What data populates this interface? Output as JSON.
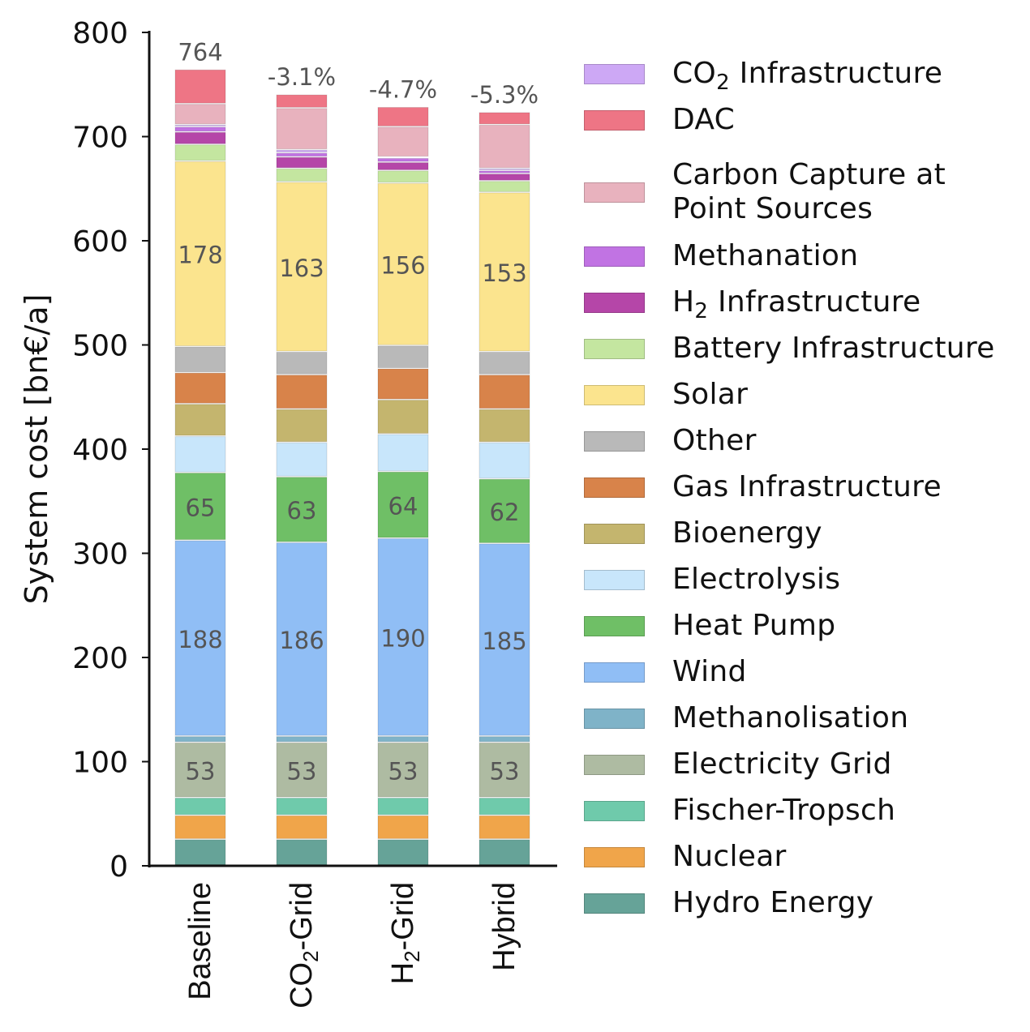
{
  "chart_data": {
    "type": "bar",
    "stacked": true,
    "title": "",
    "xlabel": "",
    "ylabel": "System cost [bn€/a]",
    "ylim": [
      0,
      800
    ],
    "yticks": [
      0,
      100,
      200,
      300,
      400,
      500,
      600,
      700,
      800
    ],
    "categories": [
      "Baseline",
      "CO2-Grid",
      "H2-Grid",
      "Hybrid"
    ],
    "category_display": [
      {
        "main": "Baseline",
        "sub": "",
        "rest": ""
      },
      {
        "main": "CO",
        "sub": "2",
        "rest": "-Grid"
      },
      {
        "main": "H",
        "sub": "2",
        "rest": "-Grid"
      },
      {
        "main": "Hybrid",
        "sub": "",
        "rest": ""
      }
    ],
    "top_labels": [
      "764",
      "-3.1%",
      "-4.7%",
      "-5.3%"
    ],
    "grid": false,
    "legend_position": "right",
    "series": [
      {
        "name": "Hydro Energy",
        "color": "#66a398",
        "values": [
          25,
          25,
          25,
          25
        ]
      },
      {
        "name": "Nuclear",
        "color": "#f0a54a",
        "values": [
          23,
          23,
          23,
          23
        ]
      },
      {
        "name": "Fischer-Tropsch",
        "color": "#6fcaab",
        "values": [
          17,
          17,
          17,
          17
        ]
      },
      {
        "name": "Electricity Grid",
        "color": "#aebba2",
        "values": [
          53,
          53,
          53,
          53
        ],
        "labels": [
          "53",
          "53",
          "53",
          "53"
        ]
      },
      {
        "name": "Methanolisation",
        "color": "#7fb3c8",
        "values": [
          6,
          6,
          6,
          6
        ]
      },
      {
        "name": "Wind",
        "color": "#90bef5",
        "values": [
          188,
          186,
          190,
          185
        ],
        "labels": [
          "188",
          "186",
          "190",
          "185"
        ]
      },
      {
        "name": "Heat Pump",
        "color": "#6fbf66",
        "values": [
          65,
          63,
          64,
          62
        ],
        "labels": [
          "65",
          "63",
          "64",
          "62"
        ]
      },
      {
        "name": "Electrolysis",
        "color": "#c8e6fb",
        "values": [
          35,
          33,
          36,
          35
        ]
      },
      {
        "name": "Bioenergy",
        "color": "#c4b56e",
        "values": [
          31,
          32,
          33,
          32
        ]
      },
      {
        "name": "Gas Infrastructure",
        "color": "#d8834a",
        "values": [
          30,
          33,
          30,
          33
        ]
      },
      {
        "name": "Other",
        "color": "#b9b9b9",
        "values": [
          25,
          22,
          22,
          22
        ]
      },
      {
        "name": "Solar",
        "color": "#fbe48e",
        "values": [
          178,
          163,
          156,
          153
        ],
        "labels": [
          "178",
          "163",
          "156",
          "153"
        ]
      },
      {
        "name": "Battery Infrastructure",
        "color": "#c4e6a0",
        "values": [
          16,
          13,
          12,
          11
        ]
      },
      {
        "name": "H2 Infrastructure",
        "color": "#b546a8",
        "values": [
          12,
          11,
          8,
          7
        ]
      },
      {
        "name": "Methanation",
        "color": "#c173e3",
        "values": [
          5,
          4,
          4,
          3
        ]
      },
      {
        "name": "CO2 Infrastructure",
        "color": "#cda8f5",
        "values": [
          2,
          3,
          1,
          2
        ]
      },
      {
        "name": "Carbon Capture at Point Sources",
        "color": "#e8b2be",
        "values": [
          20,
          40,
          29,
          42
        ]
      },
      {
        "name": "DAC",
        "color": "#ee7585",
        "values": [
          33,
          13,
          19,
          12
        ]
      }
    ]
  },
  "legend": [
    {
      "key": "CO2 Infrastructure",
      "main": "CO",
      "sub": "2",
      "rest": " Infrastructure",
      "color": "#cda8f5"
    },
    {
      "key": "DAC",
      "main": "DAC",
      "sub": "",
      "rest": "",
      "color": "#ee7585"
    },
    {
      "key": "Carbon Capture at Point Sources",
      "main": "Carbon Capture at\nPoint Sources",
      "sub": "",
      "rest": "",
      "color": "#e8b2be"
    },
    {
      "key": "Methanation",
      "main": "Methanation",
      "sub": "",
      "rest": "",
      "color": "#c173e3"
    },
    {
      "key": "H2 Infrastructure",
      "main": "H",
      "sub": "2",
      "rest": " Infrastructure",
      "color": "#b546a8"
    },
    {
      "key": "Battery Infrastructure",
      "main": "Battery Infrastructure",
      "sub": "",
      "rest": "",
      "color": "#c4e6a0"
    },
    {
      "key": "Solar",
      "main": "Solar",
      "sub": "",
      "rest": "",
      "color": "#fbe48e"
    },
    {
      "key": "Other",
      "main": "Other",
      "sub": "",
      "rest": "",
      "color": "#b9b9b9"
    },
    {
      "key": "Gas Infrastructure",
      "main": "Gas Infrastructure",
      "sub": "",
      "rest": "",
      "color": "#d8834a"
    },
    {
      "key": "Bioenergy",
      "main": "Bioenergy",
      "sub": "",
      "rest": "",
      "color": "#c4b56e"
    },
    {
      "key": "Electrolysis",
      "main": "Electrolysis",
      "sub": "",
      "rest": "",
      "color": "#c8e6fb"
    },
    {
      "key": "Heat Pump",
      "main": "Heat Pump",
      "sub": "",
      "rest": "",
      "color": "#6fbf66"
    },
    {
      "key": "Wind",
      "main": "Wind",
      "sub": "",
      "rest": "",
      "color": "#90bef5"
    },
    {
      "key": "Methanolisation",
      "main": "Methanolisation",
      "sub": "",
      "rest": "",
      "color": "#7fb3c8"
    },
    {
      "key": "Electricity Grid",
      "main": "Electricity Grid",
      "sub": "",
      "rest": "",
      "color": "#aebba2"
    },
    {
      "key": "Fischer-Tropsch",
      "main": "Fischer-Tropsch",
      "sub": "",
      "rest": "",
      "color": "#6fcaab"
    },
    {
      "key": "Nuclear",
      "main": "Nuclear",
      "sub": "",
      "rest": "",
      "color": "#f0a54a"
    },
    {
      "key": "Hydro Energy",
      "main": "Hydro Energy",
      "sub": "",
      "rest": "",
      "color": "#66a398"
    }
  ]
}
